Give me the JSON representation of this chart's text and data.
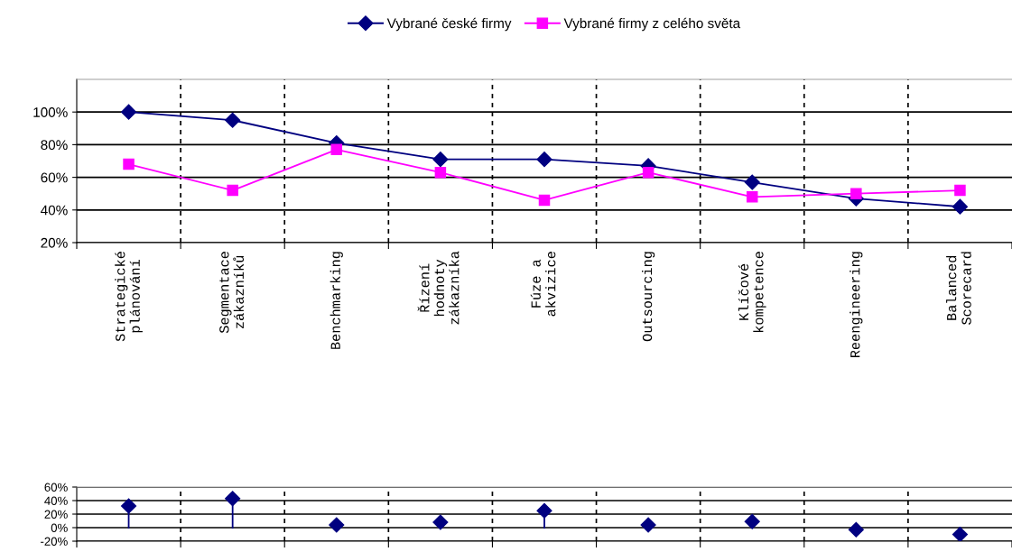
{
  "chart_data": [
    {
      "type": "line",
      "categories": [
        "Strategické\nplánování",
        "Segmentace\nzákazníků",
        "Benchmarking",
        "Řízení\nhodnoty\nzákazníka",
        "Fúze a\nakvizice",
        "Outsourcing",
        "Klíčové\nkompetence",
        "Reengineering",
        "Balanced\nScorecard"
      ],
      "series": [
        {
          "name": "Vybrané české firmy",
          "color": "#000080",
          "marker": "diamond",
          "values": [
            100,
            95,
            81,
            71,
            71,
            67,
            57,
            47,
            42
          ]
        },
        {
          "name": "Vybrané firmy z celého světa",
          "color": "#ff00ff",
          "marker": "square",
          "values": [
            68,
            52,
            77,
            63,
            46,
            63,
            48,
            50,
            52
          ]
        }
      ],
      "ylim": [
        20,
        120
      ],
      "yticks": [
        {
          "value": 20,
          "label": "20%"
        },
        {
          "value": 40,
          "label": "40%"
        },
        {
          "value": 60,
          "label": "60%"
        },
        {
          "value": 80,
          "label": "80%"
        },
        {
          "value": 100,
          "label": "100%"
        }
      ],
      "grid": true,
      "legend": "top",
      "line_style": "solid"
    },
    {
      "type": "lollipop",
      "categories": [
        null,
        null,
        null,
        null,
        null,
        null,
        null,
        null,
        null
      ],
      "series": [
        {
          "color": "#000080",
          "values": [
            32,
            43,
            4,
            8,
            25,
            4,
            9,
            -3,
            -10
          ]
        }
      ],
      "marker": "diamond",
      "ylim": [
        -20,
        60
      ],
      "yticks": [
        {
          "value": -20,
          "label": "-20%"
        },
        {
          "value": 0,
          "label": "0%"
        },
        {
          "value": 20,
          "label": "20%"
        },
        {
          "value": 40,
          "label": "40%"
        },
        {
          "value": 60,
          "label": "60%"
        }
      ],
      "grid": true,
      "tick_labels": "y"
    }
  ]
}
